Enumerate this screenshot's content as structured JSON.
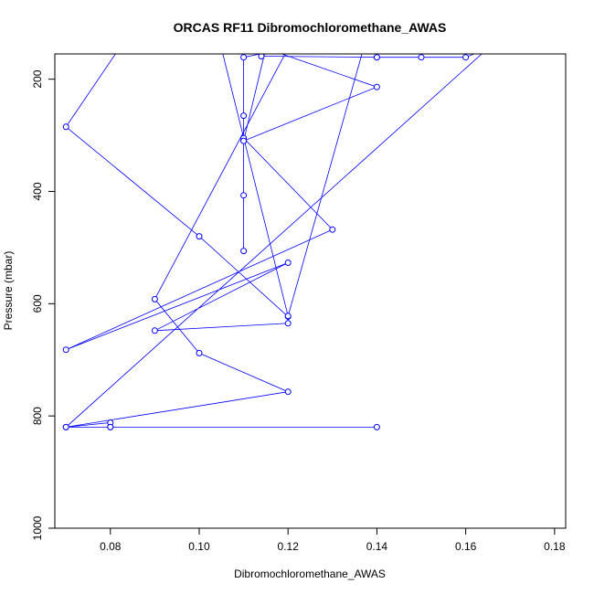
{
  "chart_data": {
    "type": "line",
    "title": "ORCAS RF11 Dibromochloromethane_AWAS",
    "xlabel": "Dibromochloromethane_AWAS",
    "ylabel": "Pressure (mbar)",
    "xlim": [
      0.0675,
      0.1825
    ],
    "ylim": [
      1000,
      155
    ],
    "y_reversed": true,
    "x_ticks": [
      0.08,
      0.1,
      0.12,
      0.14,
      0.16,
      0.18
    ],
    "x_tick_labels": [
      "0.08",
      "0.10",
      "0.12",
      "0.14",
      "0.16",
      "0.18"
    ],
    "y_ticks": [
      200,
      400,
      600,
      800,
      1000
    ],
    "y_tick_labels": [
      "200",
      "400",
      "600",
      "800",
      "1000"
    ],
    "grid": false,
    "marker": "open-circle",
    "color": "#0000ff",
    "series": [
      {
        "x": [
          0.082,
          0.07,
          0.1,
          0.12,
          0.12,
          0.09,
          0.12,
          0.07,
          0.13,
          0.11,
          0.11,
          0.11,
          0.11,
          0.11,
          0.11,
          0.12,
          0.09,
          0.1,
          0.12,
          0.07,
          0.08,
          0.08,
          0.14,
          0.08,
          0.07,
          0.165
        ],
        "y": [
          145,
          285,
          480,
          623,
          635,
          648,
          527,
          682,
          468,
          305,
          310,
          265,
          407,
          506,
          161,
          145,
          592,
          688,
          757,
          820,
          812,
          820,
          820,
          820,
          820,
          145
        ]
      },
      {
        "x": [
          0.114,
          0.14,
          0.15,
          0.16,
          0.165
        ],
        "y": [
          159,
          161,
          161,
          161,
          145
        ]
      },
      {
        "x": [
          0.137,
          0.12,
          0.105
        ],
        "y": [
          145,
          622,
          145
        ]
      },
      {
        "x": [
          0.115,
          0.11,
          0.14,
          0.115
        ],
        "y": [
          145,
          310,
          214,
          145
        ]
      }
    ],
    "isolated_points": {
      "x": [
        0.14
      ],
      "y": [
        161
      ]
    }
  }
}
